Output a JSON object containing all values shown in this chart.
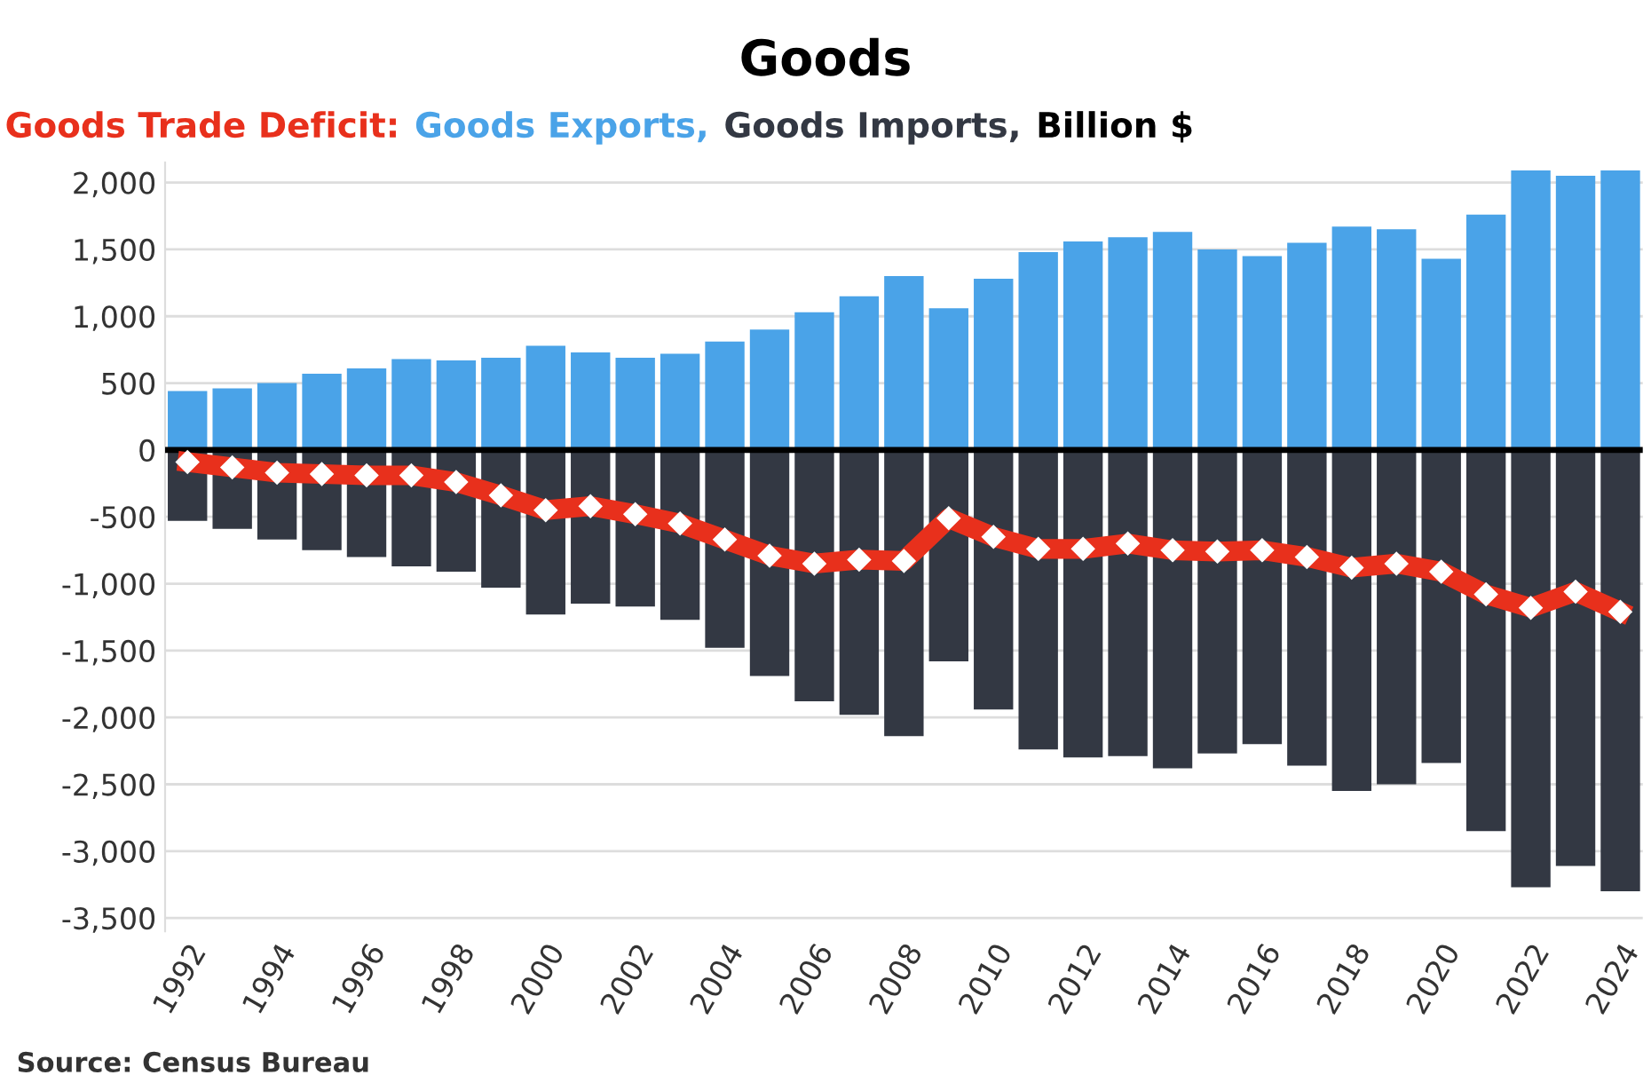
{
  "chart_data": {
    "type": "bar",
    "title": "Goods",
    "subtitle": "Billion $",
    "categories": [
      "1992",
      null,
      "1994",
      null,
      "1996",
      null,
      "1998",
      null,
      "2000",
      null,
      "2002",
      null,
      "2004",
      null,
      "2006",
      null,
      "2008",
      null,
      "2010",
      null,
      "2012",
      null,
      "2014",
      null,
      "2016",
      null,
      "2018",
      null,
      "2020",
      null,
      "2022",
      null,
      "2024"
    ],
    "series": [
      {
        "name": "Goods Trade Deficit:",
        "type": "line",
        "color": "#e8301c",
        "marker": "diamond",
        "values": [
          -90,
          -130,
          -170,
          -180,
          -190,
          -190,
          -240,
          -340,
          -450,
          -420,
          -480,
          -550,
          -670,
          -790,
          -850,
          -820,
          -830,
          -510,
          -650,
          -740,
          -740,
          -700,
          -750,
          -760,
          -750,
          -800,
          -880,
          -850,
          -910,
          -1080,
          -1180,
          -1060,
          -1210
        ]
      },
      {
        "name": "Goods Exports,",
        "color": "#4aa3e8",
        "values": [
          440,
          460,
          500,
          570,
          610,
          680,
          670,
          690,
          780,
          730,
          690,
          720,
          810,
          900,
          1030,
          1150,
          1300,
          1060,
          1280,
          1480,
          1560,
          1590,
          1630,
          1500,
          1450,
          1550,
          1670,
          1650,
          1430,
          1760,
          2090,
          2050,
          2090
        ]
      },
      {
        "name": "Goods Imports,",
        "color": "#333843",
        "values": [
          -530,
          -590,
          -670,
          -750,
          -800,
          -870,
          -910,
          -1030,
          -1230,
          -1150,
          -1170,
          -1270,
          -1480,
          -1690,
          -1880,
          -1980,
          -2140,
          -1580,
          -1940,
          -2240,
          -2300,
          -2290,
          -2380,
          -2270,
          -2200,
          -2360,
          -2550,
          -2500,
          -2340,
          -2850,
          -3270,
          -3110,
          -3300
        ]
      }
    ],
    "ylim": [
      -3600,
      2150
    ],
    "yticks": [
      {
        "value": -3500,
        "label": "-3,500"
      },
      {
        "value": -3000,
        "label": "-3,000"
      },
      {
        "value": -2500,
        "label": "-2,500"
      },
      {
        "value": -2000,
        "label": "-2,000"
      },
      {
        "value": -1500,
        "label": "-1,500"
      },
      {
        "value": -1000,
        "label": "-1,000"
      },
      -500,
      0,
      500,
      {
        "value": 1000,
        "label": "1,000"
      },
      {
        "value": 1500,
        "label": "1,500"
      },
      {
        "value": 2000,
        "label": "2,000"
      }
    ],
    "ref_lines": [
      {
        "axis": "y",
        "value": 0,
        "color": "#000000"
      }
    ],
    "grid": "y",
    "legend": "top",
    "stacked": true,
    "annotations": [
      "Source: Census Bureau"
    ]
  }
}
